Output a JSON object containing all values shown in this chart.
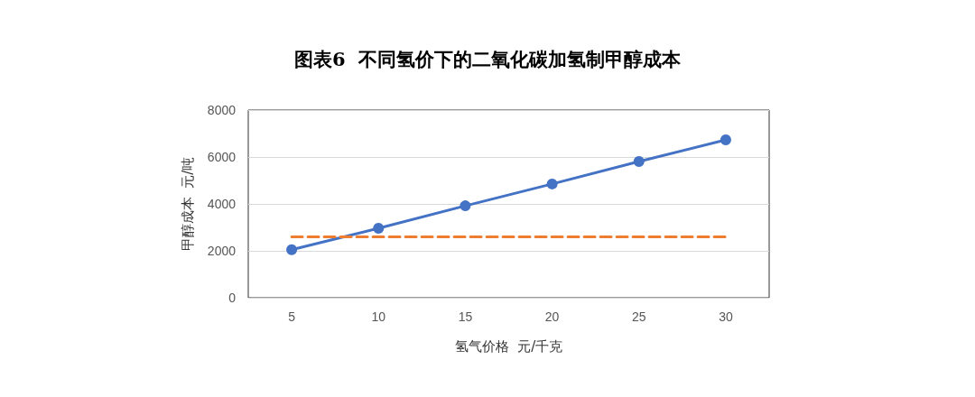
{
  "chart_data": {
    "type": "line",
    "title": "图表6  不同氢价下的二氧化碳加氢制甲醇成本",
    "xlabel": "氢气价格  元/千克",
    "ylabel": "甲醇成本  元/吨",
    "categories": [
      "5",
      "10",
      "15",
      "20",
      "25",
      "30"
    ],
    "series": [
      {
        "color": "#4472c4",
        "values": [
          2050,
          2960,
          3920,
          4850,
          5810,
          6730
        ],
        "marker": "circle",
        "line_style": "solid"
      },
      {
        "color": "#ed7d31",
        "values": [
          2600,
          2600,
          2600,
          2600,
          2600,
          2600
        ],
        "marker": "none",
        "line_style": "dashed"
      }
    ],
    "ylim": [
      0,
      8000
    ],
    "yticks": [
      0,
      2000,
      4000,
      6000,
      8000
    ],
    "grid": "y"
  }
}
